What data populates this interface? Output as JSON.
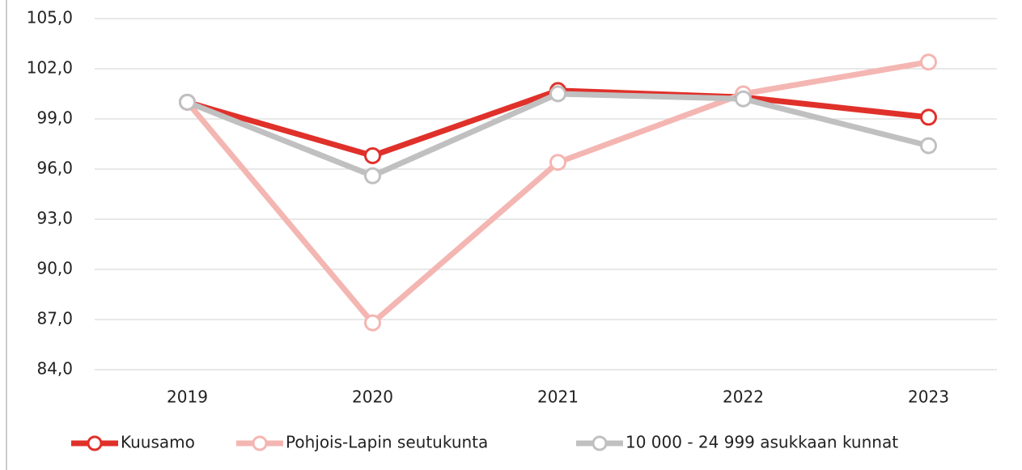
{
  "chart_data": {
    "type": "line",
    "categories": [
      "2019",
      "2020",
      "2021",
      "2022",
      "2023"
    ],
    "series": [
      {
        "name": "Kuusamo",
        "color": "#e0302a",
        "values": [
          100.0,
          96.8,
          100.7,
          100.3,
          99.1
        ]
      },
      {
        "name": "Pohjois-Lapin seutukunta",
        "color": "#f4b6b2",
        "values": [
          100.0,
          86.8,
          96.4,
          100.5,
          102.4
        ]
      },
      {
        "name": "10 000 - 24 999 asukkaan kunnat",
        "color": "#c0c0c0",
        "values": [
          100.0,
          95.6,
          100.5,
          100.2,
          97.4
        ]
      }
    ],
    "ylim": [
      84,
      105
    ],
    "yticks": [
      {
        "value": 84,
        "label": "84,0"
      },
      {
        "value": 87,
        "label": "87,0"
      },
      {
        "value": 90,
        "label": "90,0"
      },
      {
        "value": 93,
        "label": "93,0"
      },
      {
        "value": 96,
        "label": "96,0"
      },
      {
        "value": 99,
        "label": "99,0"
      },
      {
        "value": 102,
        "label": "102,0"
      },
      {
        "value": 105,
        "label": "105,0"
      }
    ],
    "grid": true,
    "legend": "bottom"
  }
}
